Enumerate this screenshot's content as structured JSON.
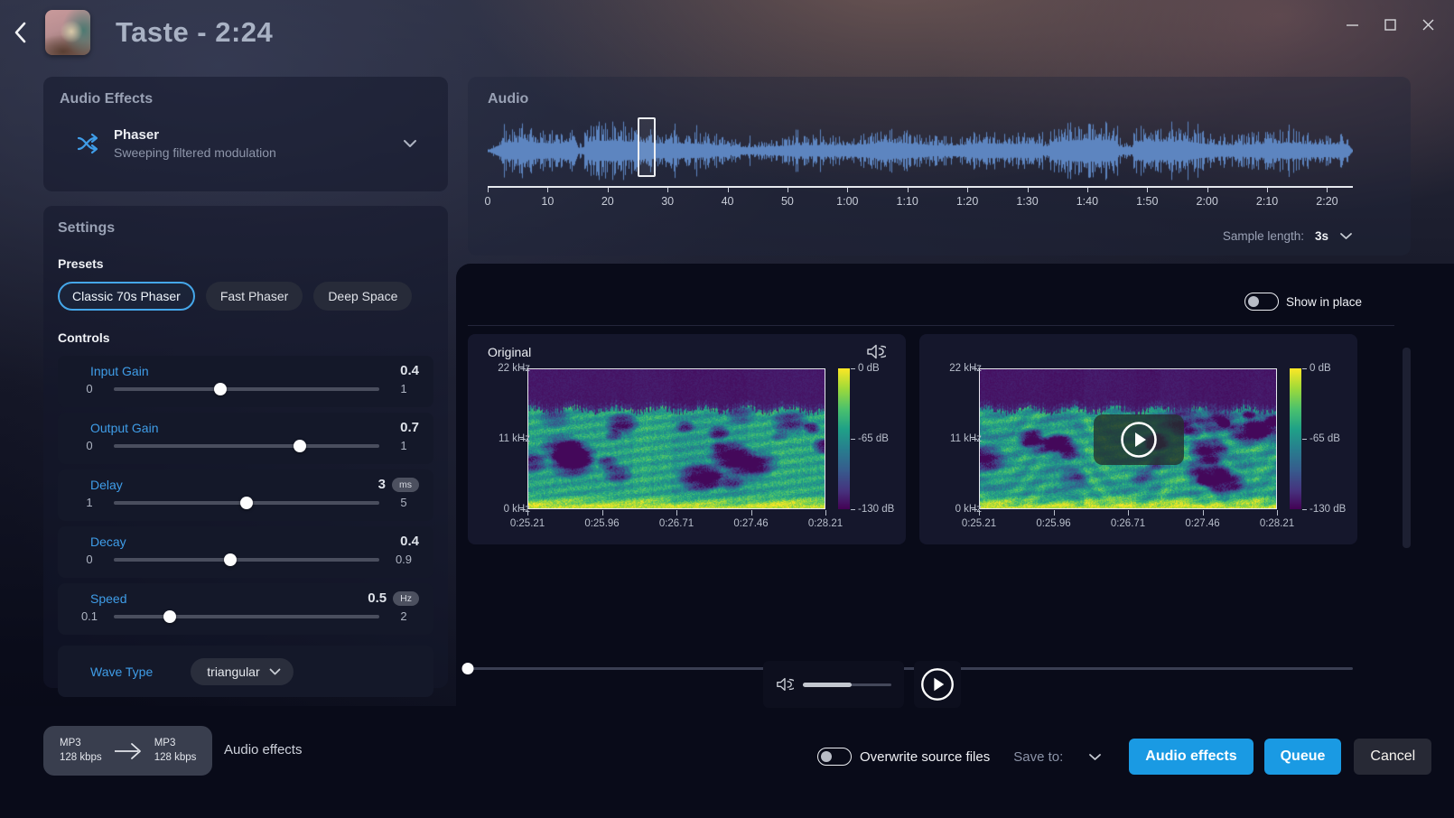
{
  "window": {
    "title": "Taste - 2:24",
    "controls": {
      "minimize": "minimize",
      "maximize": "maximize",
      "close": "close"
    }
  },
  "audio_effects": {
    "header": "Audio Effects",
    "effect": {
      "name": "Phaser",
      "description": "Sweeping filtered modulation"
    }
  },
  "settings": {
    "header": "Settings",
    "presets_label": "Presets",
    "presets": [
      {
        "label": "Classic 70s Phaser",
        "active": true
      },
      {
        "label": "Fast Phaser",
        "active": false
      },
      {
        "label": "Deep Space",
        "active": false
      }
    ],
    "controls_label": "Controls",
    "sliders": [
      {
        "label": "Input Gain",
        "min": "0",
        "max": "1",
        "value": "0.4",
        "unit": "",
        "pct": 40
      },
      {
        "label": "Output Gain",
        "min": "0",
        "max": "1",
        "value": "0.7",
        "unit": "",
        "pct": 70
      },
      {
        "label": "Delay",
        "min": "1",
        "max": "5",
        "value": "3",
        "unit": "ms",
        "pct": 50
      },
      {
        "label": "Decay",
        "min": "0",
        "max": "0.9",
        "value": "0.4",
        "unit": "",
        "pct": 44
      },
      {
        "label": "Speed",
        "min": "0.1",
        "max": "2",
        "value": "0.5",
        "unit": "Hz",
        "pct": 21
      }
    ],
    "wave_type": {
      "label": "Wave Type",
      "value": "triangular"
    }
  },
  "audio_panel": {
    "header": "Audio",
    "duration_seconds": 144.3,
    "time_ticks": [
      "0",
      "10",
      "20",
      "30",
      "40",
      "50",
      "1:00",
      "1:10",
      "1:20",
      "1:30",
      "1:40",
      "1:50",
      "2:00",
      "2:10",
      "2:20"
    ],
    "selection": {
      "start_label": "0:25.21",
      "end_label": "0:28.21"
    },
    "sample_length_label": "Sample length:",
    "sample_length_value": "3s"
  },
  "preview": {
    "show_in_place_label": "Show in place",
    "original_label": "Original",
    "spectrogram": {
      "freq_ticks": [
        "22 kHz",
        "11 kHz",
        "0 kHz"
      ],
      "time_ticks": [
        "0:25.21",
        "0:25.96",
        "0:26.71",
        "0:27.46",
        "0:28.21"
      ],
      "db_ticks": [
        "0 dB",
        "-65 dB",
        "-130 dB"
      ]
    }
  },
  "footer": {
    "source": {
      "format": "MP3",
      "bitrate": "128 kbps"
    },
    "target": {
      "format": "MP3",
      "bitrate": "128 kbps"
    },
    "operation_label": "Audio effects",
    "overwrite_label": "Overwrite source files",
    "save_to_label": "Save to:",
    "buttons": {
      "apply": "Audio effects",
      "queue": "Queue",
      "cancel": "Cancel"
    }
  },
  "colors": {
    "accent": "#1a9ae3",
    "label_blue": "#3f9de8",
    "waveform": "#5d85c0"
  }
}
